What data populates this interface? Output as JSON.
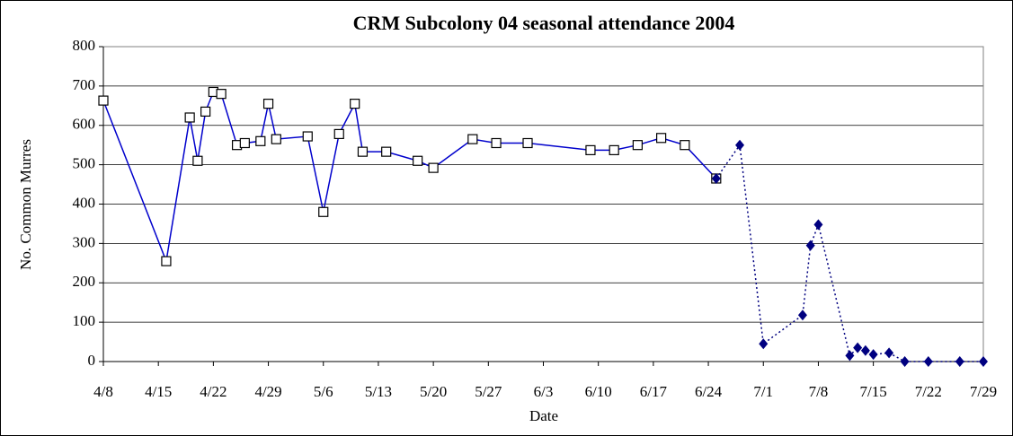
{
  "chart_data": {
    "type": "line",
    "title": "CRM Subcolony 04 seasonal attendance 2004",
    "xlabel": "Date",
    "ylabel": "No. Common Murres",
    "series": [
      {
        "color": "#0000cc",
        "marker": "square",
        "linestyle": "solid",
        "x": [
          "4/8",
          "4/16",
          "4/19",
          "4/20",
          "4/21",
          "4/22",
          "4/23",
          "4/25",
          "4/26",
          "4/28",
          "4/29",
          "4/30",
          "5/4",
          "5/6",
          "5/8",
          "5/10",
          "5/11",
          "5/14",
          "5/18",
          "5/20",
          "5/25",
          "5/28",
          "6/1",
          "6/9",
          "6/12",
          "6/15",
          "6/18",
          "6/21",
          "6/25"
        ],
        "values": [
          663,
          255,
          620,
          510,
          635,
          685,
          680,
          550,
          555,
          560,
          655,
          565,
          572,
          380,
          578,
          655,
          533,
          533,
          510,
          492,
          565,
          555,
          555,
          537,
          537,
          550,
          568,
          550,
          465
        ]
      },
      {
        "color": "#000080",
        "marker": "diamond",
        "linestyle": "dotted",
        "x": [
          "6/25",
          "6/28",
          "7/1",
          "7/6",
          "7/7",
          "7/8",
          "7/12",
          "7/13",
          "7/14",
          "7/15",
          "7/17",
          "7/19",
          "7/22",
          "7/26",
          "7/29"
        ],
        "values": [
          465,
          550,
          45,
          118,
          295,
          348,
          15,
          35,
          28,
          18,
          22,
          0,
          0,
          0,
          0
        ]
      }
    ],
    "xlim": [
      "4/8",
      "7/29"
    ],
    "xticks": [
      "4/8",
      "4/15",
      "4/22",
      "4/29",
      "5/6",
      "5/13",
      "5/20",
      "5/27",
      "6/3",
      "6/10",
      "6/17",
      "6/24",
      "7/1",
      "7/8",
      "7/15",
      "7/22",
      "7/29"
    ],
    "ylim": [
      0,
      800
    ],
    "yticks": [
      0,
      100,
      200,
      300,
      400,
      500,
      600,
      700,
      800
    ],
    "grid": true
  }
}
